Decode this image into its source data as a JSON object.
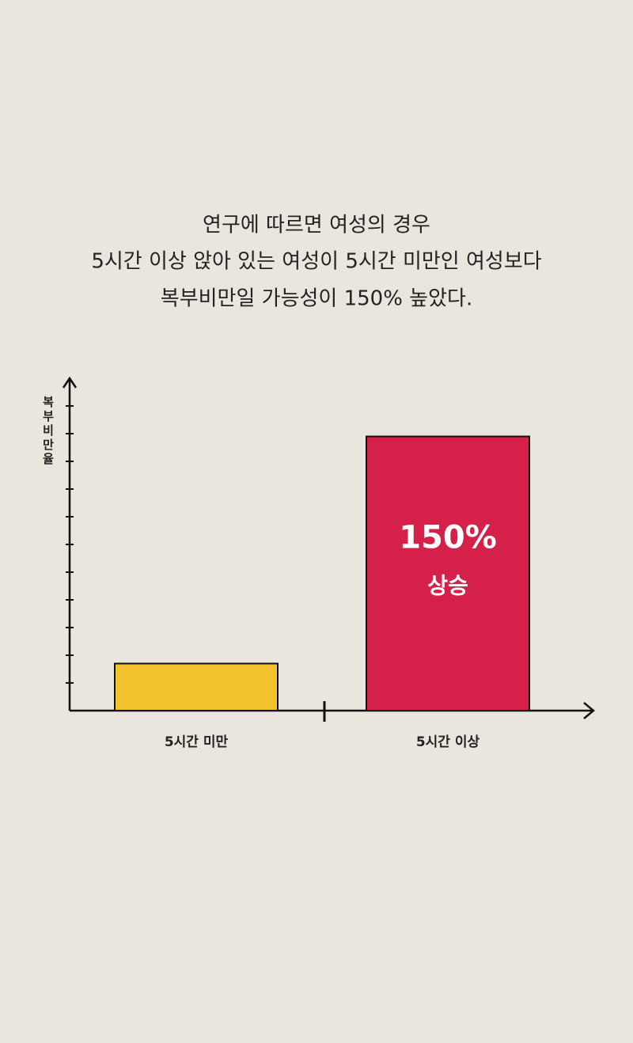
{
  "chart_data": {
    "type": "bar",
    "title": [
      "연구에 따르면 여성의 경우",
      "5시간 이상 앉아 있는 여성이 5시간 미만인 여성보다",
      "복부비만일 가능성이 150% 높았다."
    ],
    "y_label": "복부비만율",
    "categories": [
      "5시간 미만",
      "5시간 이상"
    ],
    "values": [
      1.7,
      9.9
    ],
    "colors": [
      "#f2c12e",
      "#d5204a"
    ],
    "annotations": [
      "150%",
      "상승"
    ],
    "ylim": [
      0,
      12
    ],
    "yticks": [
      1,
      2,
      3,
      4,
      5,
      6,
      7,
      8,
      9,
      10,
      11
    ]
  }
}
